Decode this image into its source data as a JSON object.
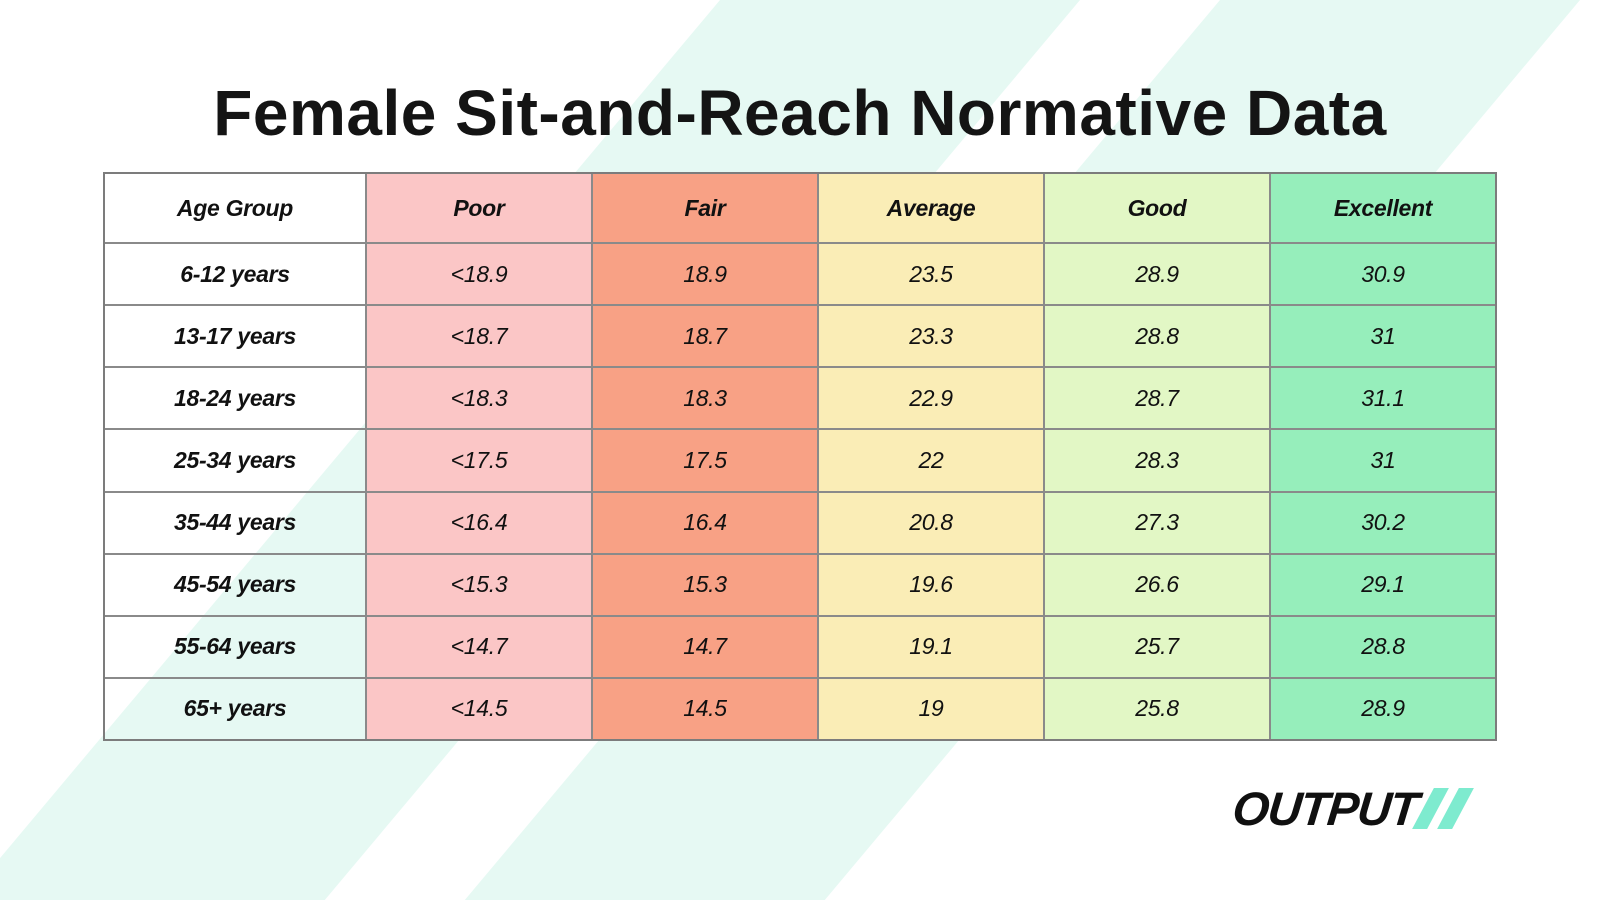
{
  "chart_data": {
    "type": "table",
    "title": "Female Sit-and-Reach Normative Data",
    "columns": [
      "Age Group",
      "Poor",
      "Fair",
      "Average",
      "Good",
      "Excellent"
    ],
    "rows": [
      [
        "6-12 years",
        "<18.9",
        "18.9",
        "23.5",
        "28.9",
        "30.9"
      ],
      [
        "13-17 years",
        "<18.7",
        "18.7",
        "23.3",
        "28.8",
        "31"
      ],
      [
        "18-24 years",
        "<18.3",
        "18.3",
        "22.9",
        "28.7",
        "31.1"
      ],
      [
        "25-34 years",
        "<17.5",
        "17.5",
        "22",
        "28.3",
        "31"
      ],
      [
        "35-44 years",
        "<16.4",
        "16.4",
        "20.8",
        "27.3",
        "30.2"
      ],
      [
        "45-54 years",
        "<15.3",
        "15.3",
        "19.6",
        "26.6",
        "29.1"
      ],
      [
        "55-64 years",
        "<14.7",
        "14.7",
        "19.1",
        "25.7",
        "28.8"
      ],
      [
        "65+ years",
        "<14.5",
        "14.5",
        "19",
        "25.8",
        "28.9"
      ]
    ],
    "layout": {
      "header_style": "bold-italic",
      "first_column_background": "transparent",
      "grid": true
    }
  },
  "colors": {
    "poor_column": "#fbc6c6",
    "fair_column": "#f8a185",
    "average_column": "#faedb6",
    "good_column": "#e2f7c5",
    "excellent_column": "#96eebb",
    "background_stripe": "#e6f9f3",
    "table_border": "#8a8a8a",
    "logo_slash": "#7eebcf",
    "text": "#141414"
  },
  "logo": {
    "text": "OUTPUT"
  }
}
